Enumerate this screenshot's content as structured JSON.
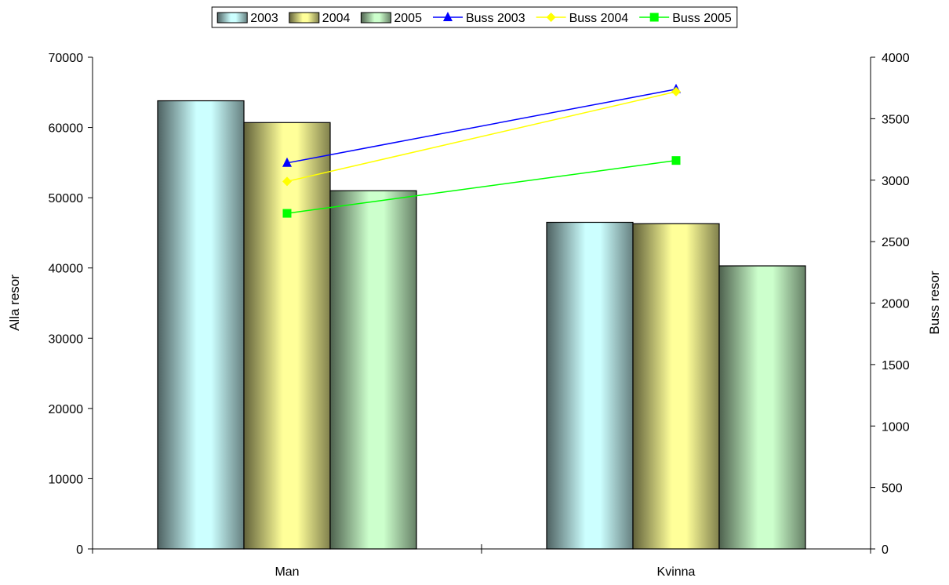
{
  "chart_data": {
    "type": "bar",
    "categories": [
      "Man",
      "Kvinna"
    ],
    "xlabel": "",
    "ylabel": "Alla resor",
    "y2label": "Buss resor",
    "ylim": [
      0,
      70000
    ],
    "y2lim": [
      0,
      4000
    ],
    "yticks": [
      0,
      10000,
      20000,
      30000,
      40000,
      50000,
      60000,
      70000
    ],
    "y2ticks": [
      0,
      500,
      1000,
      1500,
      2000,
      2500,
      3000,
      3500,
      4000
    ],
    "legend_position": "top",
    "series": [
      {
        "name": "2003",
        "type": "bar",
        "axis": "left",
        "values": [
          63800,
          46500
        ],
        "color": "#ccffff"
      },
      {
        "name": "2004",
        "type": "bar",
        "axis": "left",
        "values": [
          60700,
          46300
        ],
        "color": "#ffff99"
      },
      {
        "name": "2005",
        "type": "bar",
        "axis": "left",
        "values": [
          51000,
          40300
        ],
        "color": "#ccffcc"
      },
      {
        "name": "Buss 2003",
        "type": "line",
        "axis": "right",
        "values": [
          3140,
          3740
        ],
        "color": "#0000ff",
        "marker": "triangle"
      },
      {
        "name": "Buss 2004",
        "type": "line",
        "axis": "right",
        "values": [
          2990,
          3720
        ],
        "color": "#ffff00",
        "marker": "diamond"
      },
      {
        "name": "Buss 2005",
        "type": "line",
        "axis": "right",
        "values": [
          2730,
          3160
        ],
        "color": "#00ff00",
        "marker": "square"
      }
    ]
  }
}
